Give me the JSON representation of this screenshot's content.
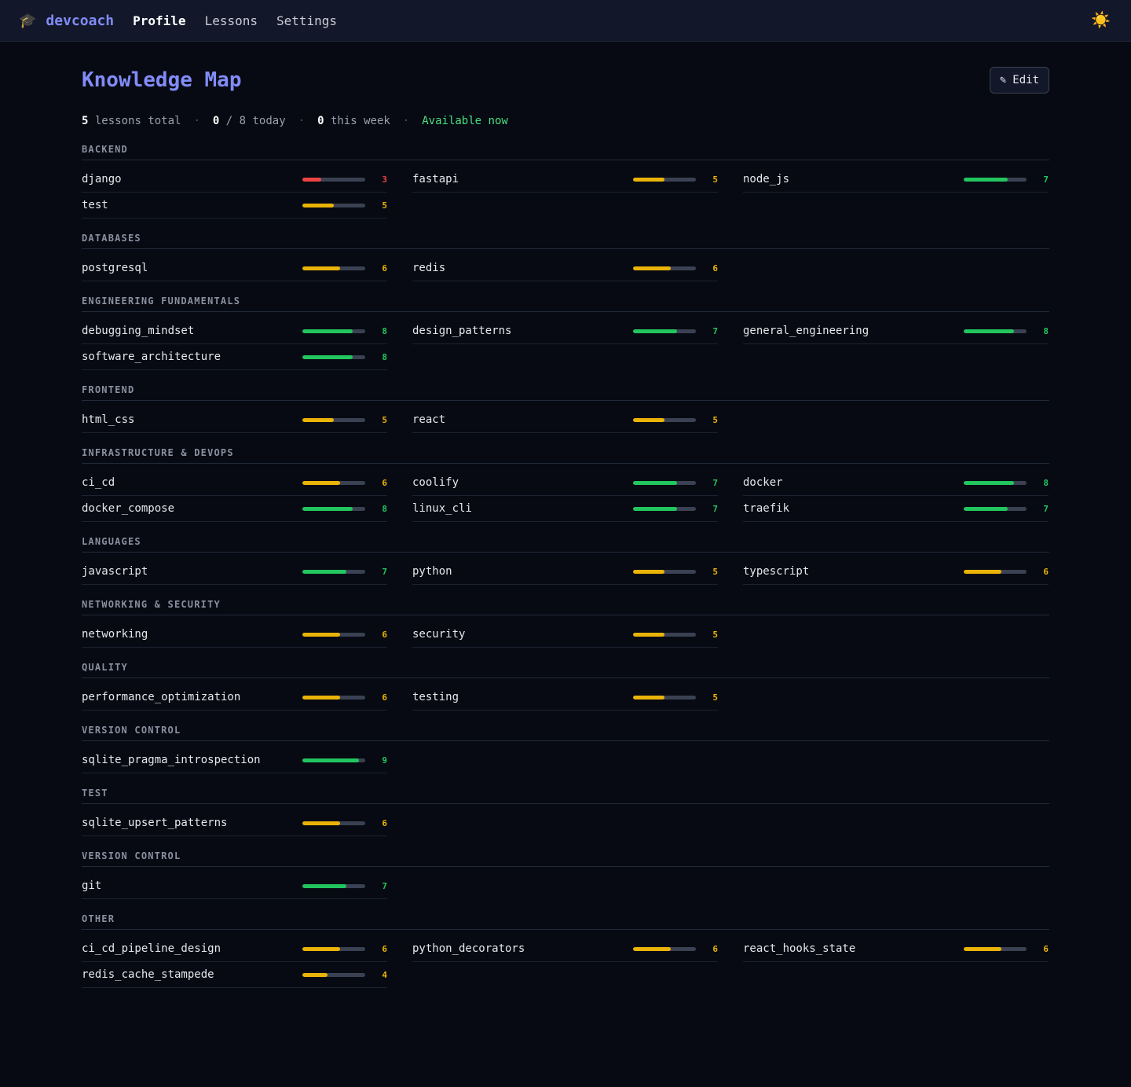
{
  "nav": {
    "brand_icon": "🎓",
    "brand": "devcoach",
    "links": [
      "Profile",
      "Lessons",
      "Settings"
    ],
    "active": 0,
    "theme_icon": "☀️"
  },
  "header": {
    "title": "Knowledge Map",
    "edit_icon": "✎",
    "edit_label": "Edit"
  },
  "stats": {
    "lessons_total_value": "5",
    "lessons_total_label": "lessons total",
    "today_value": "0",
    "today_label": "/ 8 today",
    "week_value": "0",
    "week_label": "this week",
    "availability": "Available now"
  },
  "score_max": 10,
  "colors": {
    "low": "#ef4444",
    "mid": "#eab308",
    "high": "#22c55e",
    "accent": "#818cf8"
  },
  "categories": [
    {
      "title": "BACKEND",
      "skills": [
        {
          "name": "django",
          "score": 3
        },
        {
          "name": "fastapi",
          "score": 5
        },
        {
          "name": "node_js",
          "score": 7
        },
        {
          "name": "test",
          "score": 5
        }
      ]
    },
    {
      "title": "DATABASES",
      "skills": [
        {
          "name": "postgresql",
          "score": 6
        },
        {
          "name": "redis",
          "score": 6
        }
      ]
    },
    {
      "title": "ENGINEERING FUNDAMENTALS",
      "skills": [
        {
          "name": "debugging_mindset",
          "score": 8
        },
        {
          "name": "design_patterns",
          "score": 7
        },
        {
          "name": "general_engineering",
          "score": 8
        },
        {
          "name": "software_architecture",
          "score": 8
        }
      ]
    },
    {
      "title": "FRONTEND",
      "skills": [
        {
          "name": "html_css",
          "score": 5
        },
        {
          "name": "react",
          "score": 5
        }
      ]
    },
    {
      "title": "INFRASTRUCTURE & DEVOPS",
      "skills": [
        {
          "name": "ci_cd",
          "score": 6
        },
        {
          "name": "coolify",
          "score": 7
        },
        {
          "name": "docker",
          "score": 8
        },
        {
          "name": "docker_compose",
          "score": 8
        },
        {
          "name": "linux_cli",
          "score": 7
        },
        {
          "name": "traefik",
          "score": 7
        }
      ]
    },
    {
      "title": "LANGUAGES",
      "skills": [
        {
          "name": "javascript",
          "score": 7
        },
        {
          "name": "python",
          "score": 5
        },
        {
          "name": "typescript",
          "score": 6
        }
      ]
    },
    {
      "title": "NETWORKING & SECURITY",
      "skills": [
        {
          "name": "networking",
          "score": 6
        },
        {
          "name": "security",
          "score": 5
        }
      ]
    },
    {
      "title": "QUALITY",
      "skills": [
        {
          "name": "performance_optimization",
          "score": 6
        },
        {
          "name": "testing",
          "score": 5
        }
      ]
    },
    {
      "title": "VERSION CONTROL",
      "skills": [
        {
          "name": "sqlite_pragma_introspection",
          "score": 9
        }
      ]
    },
    {
      "title": "TEST",
      "skills": [
        {
          "name": "sqlite_upsert_patterns",
          "score": 6
        }
      ]
    },
    {
      "title": "VERSION CONTROL",
      "skills": [
        {
          "name": "git",
          "score": 7
        }
      ]
    },
    {
      "title": "OTHER",
      "skills": [
        {
          "name": "ci_cd_pipeline_design",
          "score": 6
        },
        {
          "name": "python_decorators",
          "score": 6
        },
        {
          "name": "react_hooks_state",
          "score": 6
        },
        {
          "name": "redis_cache_stampede",
          "score": 4
        }
      ]
    }
  ]
}
